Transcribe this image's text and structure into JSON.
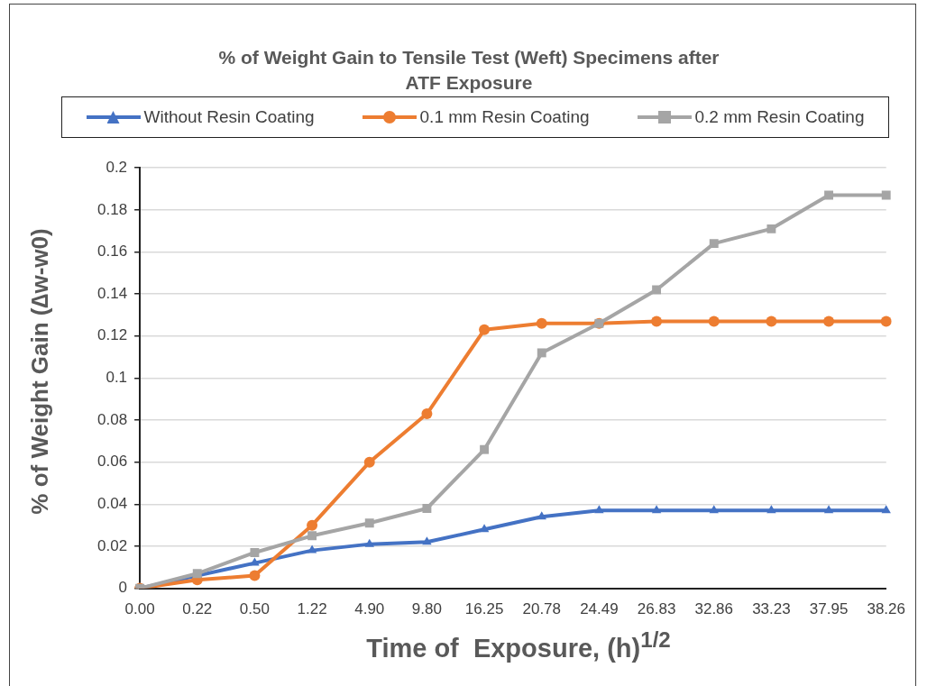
{
  "chart_data": {
    "type": "line",
    "title": "% of Weight Gain to Tensile Test (Weft) Specimens after ATF Exposure",
    "xlabel": "Time of  Exposure, (h)$^{1/2}$",
    "ylabel": "% of Weight Gain (∆w-w0)",
    "categories": [
      "0.00",
      "0.22",
      "0.50",
      "1.22",
      "4.90",
      "9.80",
      "16.25",
      "20.78",
      "24.49",
      "26.83",
      "32.86",
      "33.23",
      "37.95",
      "38.26"
    ],
    "series": [
      {
        "name": "Without Resin Coating",
        "color": "#4472c4",
        "marker": "triangle",
        "values": [
          0,
          0.006,
          0.012,
          0.018,
          0.021,
          0.022,
          0.028,
          0.034,
          0.037,
          0.037,
          0.037,
          0.037,
          0.037,
          0.037
        ]
      },
      {
        "name": "0.1 mm Resin Coating",
        "color": "#ed7d31",
        "marker": "circle",
        "values": [
          0,
          0.004,
          0.006,
          0.03,
          0.06,
          0.083,
          0.123,
          0.126,
          0.126,
          0.127,
          0.127,
          0.127,
          0.127,
          0.127
        ]
      },
      {
        "name": "0.2 mm Resin Coating",
        "color": "#a5a5a5",
        "marker": "square",
        "values": [
          0,
          0.007,
          0.017,
          0.025,
          0.031,
          0.038,
          0.066,
          0.112,
          0.126,
          0.142,
          0.164,
          0.171,
          0.187,
          0.187
        ]
      }
    ],
    "ylim": [
      0,
      0.2
    ],
    "yticks": [
      0,
      0.02,
      0.04,
      0.06,
      0.08,
      0.1,
      0.12,
      0.14,
      0.16,
      0.18,
      0.2
    ],
    "grid": "y",
    "legend": "top",
    "line_style": "solid"
  }
}
